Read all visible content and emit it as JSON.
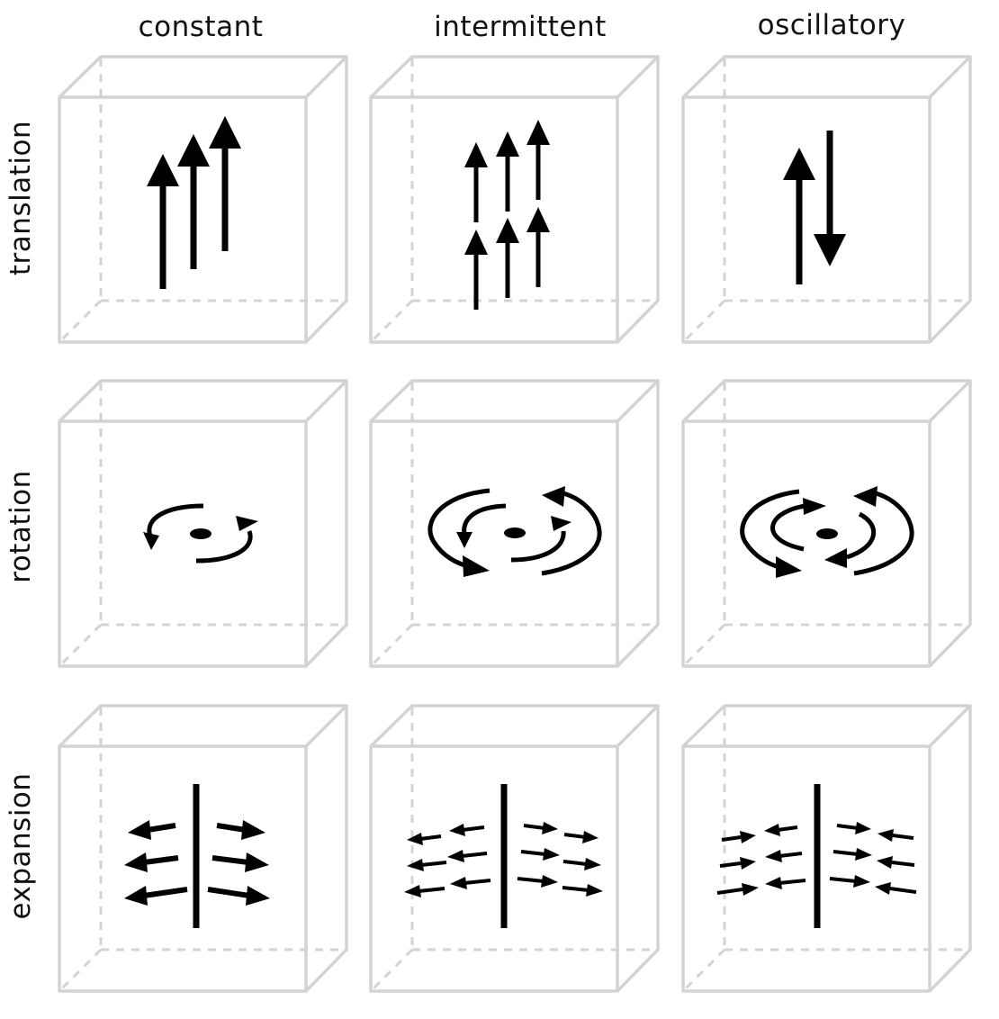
{
  "columns": [
    {
      "key": "constant",
      "label": "constant"
    },
    {
      "key": "intermittent",
      "label": "intermittent"
    },
    {
      "key": "oscillatory",
      "label": "oscillatory"
    }
  ],
  "rows": [
    {
      "key": "translation",
      "label": "translation"
    },
    {
      "key": "rotation",
      "label": "rotation"
    },
    {
      "key": "expansion",
      "label": "expansion"
    }
  ],
  "colors": {
    "box_edge": "#d3d3d3",
    "arrow": "#000000",
    "label": "#111111"
  }
}
